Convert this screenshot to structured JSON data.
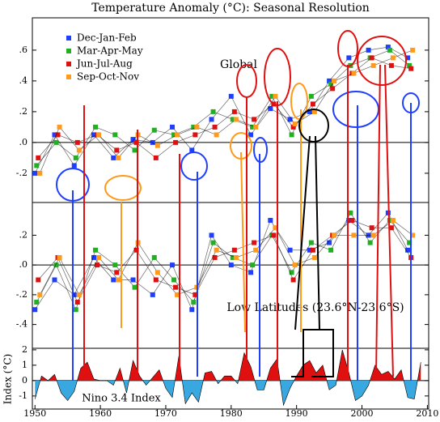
{
  "chart_data": [
    {
      "type": "line",
      "title": "Temperature Anomaly (°C): Seasonal Resolution",
      "annotation": "Global",
      "legend": "upper left",
      "xlim": [
        1949.6,
        2010.2
      ],
      "ylim": [
        -0.39,
        0.81
      ],
      "yticks": [
        {
          "value": -0.2,
          "label": "-.2"
        },
        {
          "value": 0,
          "label": ".0"
        },
        {
          "value": 0.2,
          "label": ".2"
        },
        {
          "value": 0.4,
          "label": ".4"
        },
        {
          "value": 0.6,
          "label": ".6"
        }
      ],
      "series": [
        {
          "name": "Dec-Jan-Feb",
          "color": "#1f3fff",
          "x": [
            1950,
            1953,
            1956,
            1959,
            1962,
            1965,
            1968,
            1971,
            1974,
            1977,
            1980,
            1983,
            1986,
            1989,
            1992,
            1995,
            1998,
            2001,
            2004,
            2007
          ],
          "values": [
            -0.2,
            0.05,
            -0.15,
            0.05,
            -0.1,
            0.02,
            0.0,
            0.1,
            -0.05,
            0.15,
            0.3,
            0.05,
            0.22,
            0.15,
            0.2,
            0.4,
            0.55,
            0.6,
            0.62,
            0.55
          ]
        },
        {
          "name": "Mar-Apr-May",
          "color": "#22b022",
          "x": [
            1950.25,
            1953.25,
            1956.25,
            1959.25,
            1962.25,
            1965.25,
            1968.25,
            1971.25,
            1974.25,
            1977.25,
            1980.25,
            1983.25,
            1986.25,
            1989.25,
            1992.25,
            1995.25,
            1998.25,
            2001.25,
            2004.25,
            2007.25
          ],
          "values": [
            -0.15,
            0.0,
            -0.1,
            0.1,
            0.05,
            -0.05,
            0.08,
            0.05,
            0.1,
            0.2,
            0.15,
            0.1,
            0.3,
            0.05,
            0.3,
            0.38,
            0.5,
            0.55,
            0.6,
            0.5
          ]
        },
        {
          "name": "Jun-Jul-Aug",
          "color": "#e01010",
          "x": [
            1950.5,
            1953.5,
            1956.5,
            1959.5,
            1962.5,
            1965.5,
            1968.5,
            1971.5,
            1974.5,
            1977.5,
            1980.5,
            1983.5,
            1986.5,
            1989.5,
            1992.5,
            1995.5,
            1998.5,
            2001.5,
            2004.5,
            2007.5
          ],
          "values": [
            -0.1,
            0.05,
            0.0,
            0.05,
            -0.05,
            0.0,
            -0.1,
            0.0,
            0.05,
            0.1,
            0.2,
            0.15,
            0.25,
            0.1,
            0.25,
            0.35,
            0.45,
            0.55,
            0.5,
            0.48
          ]
        },
        {
          "name": "Sep-Oct-Nov",
          "color": "#ff9a1a",
          "x": [
            1950.75,
            1953.75,
            1956.75,
            1959.75,
            1962.75,
            1965.75,
            1968.75,
            1971.75,
            1974.75,
            1977.75,
            1980.75,
            1983.75,
            1986.75,
            1989.75,
            1992.75,
            1995.75,
            1998.75,
            2001.75,
            2004.75,
            2007.75
          ],
          "values": [
            -0.2,
            0.1,
            -0.05,
            0.05,
            -0.1,
            0.05,
            -0.02,
            0.05,
            0.1,
            0.05,
            0.15,
            0.1,
            0.3,
            0.12,
            0.2,
            0.4,
            0.45,
            0.5,
            0.55,
            0.6
          ]
        }
      ]
    },
    {
      "type": "line",
      "annotation": "Low Latitudes (23.6°N-23.6°S)",
      "xlim": [
        1949.6,
        2010.2
      ],
      "ylim": [
        -0.56,
        0.42
      ],
      "yticks": [
        {
          "value": -0.4,
          "label": "-.4"
        },
        {
          "value": -0.2,
          "label": "-.2"
        },
        {
          "value": 0,
          "label": ".0"
        },
        {
          "value": 0.2,
          "label": ".2"
        }
      ],
      "series": [
        {
          "name": "Dec-Jan-Feb",
          "color": "#1f3fff",
          "x": [
            1950,
            1953,
            1956,
            1959,
            1962,
            1965,
            1968,
            1971,
            1974,
            1977,
            1980,
            1983,
            1986,
            1989,
            1992,
            1995,
            1998,
            2001,
            2004,
            2007
          ],
          "values": [
            -0.3,
            -0.1,
            -0.2,
            0.05,
            -0.1,
            -0.1,
            -0.2,
            0.0,
            -0.3,
            0.2,
            0.0,
            -0.05,
            0.3,
            0.1,
            0.1,
            0.15,
            0.3,
            0.2,
            0.35,
            0.1
          ]
        },
        {
          "name": "Mar-Apr-May",
          "color": "#22b022",
          "x": [
            1950.25,
            1953.25,
            1956.25,
            1959.25,
            1962.25,
            1965.25,
            1968.25,
            1971.25,
            1974.25,
            1977.25,
            1980.25,
            1983.25,
            1986.25,
            1989.25,
            1992.25,
            1995.25,
            1998.25,
            2001.25,
            2004.25,
            2007.25
          ],
          "values": [
            -0.25,
            0.0,
            -0.3,
            0.1,
            0.0,
            -0.15,
            0.05,
            -0.1,
            -0.25,
            0.15,
            0.05,
            0.0,
            0.2,
            -0.05,
            0.15,
            0.1,
            0.35,
            0.15,
            0.3,
            0.15
          ]
        },
        {
          "name": "Jun-Jul-Aug",
          "color": "#e01010",
          "x": [
            1950.5,
            1953.5,
            1956.5,
            1959.5,
            1962.5,
            1965.5,
            1968.5,
            1971.5,
            1974.5,
            1977.5,
            1980.5,
            1983.5,
            1986.5,
            1989.5,
            1992.5,
            1995.5,
            1998.5,
            2001.5,
            2004.5,
            2007.5
          ],
          "values": [
            -0.1,
            0.05,
            -0.25,
            0.0,
            -0.05,
            0.1,
            -0.1,
            -0.15,
            -0.2,
            0.05,
            0.1,
            0.15,
            0.2,
            -0.1,
            0.1,
            0.2,
            0.3,
            0.25,
            0.25,
            0.05
          ]
        },
        {
          "name": "Sep-Oct-Nov",
          "color": "#ff9a1a",
          "x": [
            1950.75,
            1953.75,
            1956.75,
            1959.75,
            1962.75,
            1965.75,
            1968.75,
            1971.75,
            1974.75,
            1977.75,
            1980.75,
            1983.75,
            1986.75,
            1989.75,
            1992.75,
            1995.75,
            1998.75,
            2001.75,
            2004.75,
            2007.75
          ],
          "values": [
            -0.2,
            0.05,
            -0.2,
            0.05,
            -0.1,
            0.15,
            -0.05,
            -0.2,
            -0.15,
            0.1,
            0.05,
            0.1,
            0.25,
            0.0,
            0.05,
            0.2,
            0.2,
            0.2,
            0.3,
            0.2
          ]
        }
      ]
    },
    {
      "type": "area",
      "annotation": "Nino 3.4 Index",
      "ylabel": "Index (°C)",
      "xlim": [
        1949.6,
        2010.2
      ],
      "ylim": [
        -1.85,
        2.1
      ],
      "yticks": [
        -1,
        0,
        1,
        2
      ],
      "xticks": [
        1950,
        1960,
        1970,
        1980,
        1990,
        2000,
        2010
      ],
      "positive_color": "#e01010",
      "negative_color": "#3aa8e0",
      "x": [
        1950,
        1951,
        1952,
        1953,
        1954,
        1955,
        1956,
        1957,
        1958,
        1959,
        1960,
        1961,
        1962,
        1963,
        1964,
        1965,
        1966,
        1967,
        1968,
        1969,
        1970,
        1971,
        1972,
        1973,
        1974,
        1975,
        1976,
        1977,
        1978,
        1979,
        1980,
        1981,
        1982,
        1983,
        1984,
        1985,
        1986,
        1987,
        1988,
        1989,
        1990,
        1991,
        1992,
        1993,
        1994,
        1995,
        1996,
        1997,
        1998,
        1999,
        2000,
        2001,
        2002,
        2003,
        2004,
        2005,
        2006,
        2007,
        2008,
        2009
      ],
      "values": [
        -1.2,
        0.3,
        0,
        0.4,
        -0.8,
        -1.3,
        -0.7,
        0.8,
        1.2,
        0.1,
        0,
        0,
        -0.3,
        0.8,
        -0.8,
        1.3,
        0.3,
        -0.3,
        0.2,
        0.7,
        -0.5,
        -1.1,
        1.6,
        -1.5,
        -0.8,
        -1.4,
        0.5,
        0.6,
        -0.2,
        0.3,
        0.3,
        -0.2,
        1.8,
        0.9,
        -0.6,
        -0.6,
        0.8,
        1.4,
        -1.6,
        -0.5,
        0.3,
        1.0,
        1.3,
        0.5,
        1.0,
        -0.6,
        -0.3,
        2.0,
        0.5,
        -1.3,
        -1.0,
        -0.3,
        1.0,
        0.4,
        0.6,
        0.1,
        0.7,
        -1.1,
        -1.2,
        1.2
      ]
    }
  ]
}
